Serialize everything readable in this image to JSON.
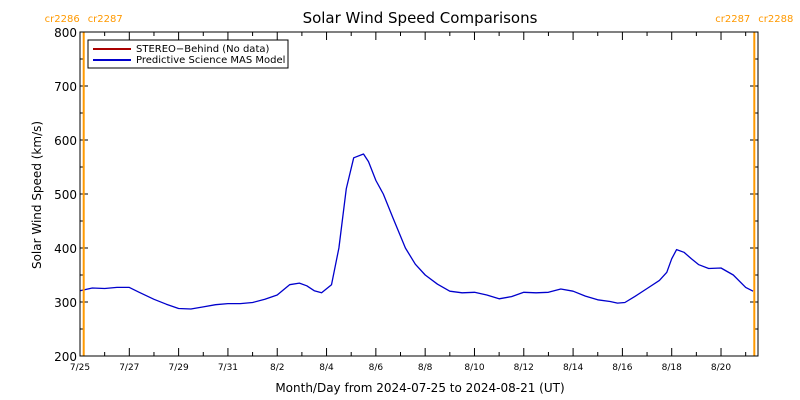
{
  "chart_data": {
    "type": "line",
    "title": "Solar Wind Speed Comparisons",
    "xlabel": "Month/Day from 2024-07-25 to 2024-08-21 (UT)",
    "ylabel": "Solar Wind Speed (km/s)",
    "ylim": [
      200,
      800
    ],
    "yticks": [
      200,
      300,
      400,
      500,
      600,
      700,
      800
    ],
    "xlim": [
      0,
      27.5
    ],
    "xticks": [
      {
        "day": 0,
        "label": "7/25"
      },
      {
        "day": 2,
        "label": "7/27"
      },
      {
        "day": 4,
        "label": "7/29"
      },
      {
        "day": 6,
        "label": "7/31"
      },
      {
        "day": 8,
        "label": "8/2"
      },
      {
        "day": 10,
        "label": "8/4"
      },
      {
        "day": 12,
        "label": "8/6"
      },
      {
        "day": 14,
        "label": "8/8"
      },
      {
        "day": 16,
        "label": "8/10"
      },
      {
        "day": 18,
        "label": "8/12"
      },
      {
        "day": 20,
        "label": "8/14"
      },
      {
        "day": 22,
        "label": "8/16"
      },
      {
        "day": 24,
        "label": "8/18"
      },
      {
        "day": 26,
        "label": "8/20"
      }
    ],
    "legend_placement": "top-left",
    "series": [
      {
        "name": "STEREO−Behind (No data)",
        "color": "#aa0000",
        "x": [],
        "values": []
      },
      {
        "name": "Predictive Science MAS Model",
        "color": "#0000cc",
        "x": [
          0,
          0.5,
          1,
          1.5,
          2,
          2.4,
          3,
          3.5,
          4,
          4.5,
          5,
          5.5,
          6,
          6.5,
          7,
          7.5,
          8,
          8.5,
          8.9,
          9.2,
          9.5,
          9.8,
          10.2,
          10.5,
          10.8,
          11.1,
          11.5,
          11.7,
          12,
          12.3,
          12.7,
          13.2,
          13.6,
          14,
          14.5,
          15,
          15.5,
          16,
          16.5,
          17,
          17.5,
          18,
          18.5,
          19,
          19.5,
          20,
          20.5,
          21,
          21.5,
          21.8,
          22.1,
          22.5,
          23,
          23.5,
          23.8,
          24,
          24.2,
          24.5,
          24.8,
          25.1,
          25.5,
          26,
          26.5,
          27,
          27.3
        ],
        "values": [
          321,
          326,
          325,
          327,
          327,
          318,
          305,
          296,
          288,
          287,
          291,
          295,
          297,
          297,
          299,
          305,
          313,
          332,
          335,
          330,
          321,
          317,
          332,
          400,
          510,
          567,
          574,
          560,
          525,
          500,
          455,
          400,
          370,
          350,
          333,
          320,
          317,
          318,
          313,
          306,
          310,
          318,
          317,
          318,
          324,
          320,
          311,
          304,
          301,
          298,
          299,
          310,
          325,
          340,
          355,
          380,
          397,
          392,
          380,
          369,
          362,
          363,
          350,
          327,
          320
        ]
      }
    ],
    "vertical_markers": [
      {
        "day": 0.15,
        "labels": [
          "cr2286",
          "cr2287"
        ],
        "color": "#ff9900"
      },
      {
        "day": 27.35,
        "labels": [
          "cr2287",
          "cr2288"
        ],
        "color": "#ff9900"
      }
    ]
  }
}
